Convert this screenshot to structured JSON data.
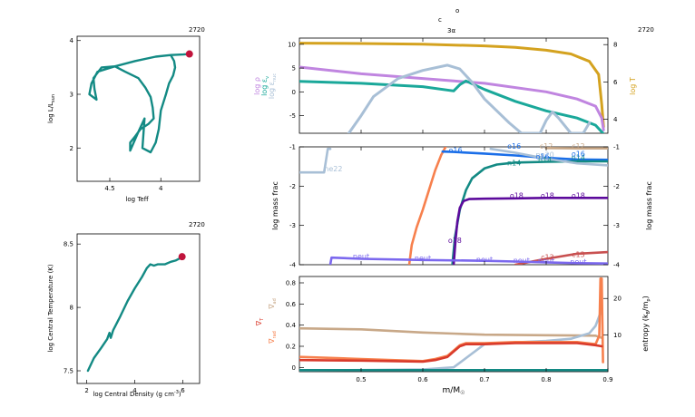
{
  "chart_data": [
    {
      "id": "hr",
      "type": "line",
      "xlabel": "log Teff",
      "ylabel": "log L/L",
      "ylabel_sub": "sun",
      "model_number": "2720",
      "x_ticks": [
        "4.5",
        "4"
      ],
      "y_ticks": [
        "2",
        "3",
        "4"
      ],
      "xlim": [
        4.82,
        3.62
      ],
      "ylim": [
        1.38,
        4.08
      ],
      "series": [
        {
          "color": "#138a84",
          "x": [
            3.72,
            3.78,
            3.9,
            4.05,
            4.25,
            4.45,
            4.62,
            4.68,
            4.7,
            4.63,
            4.65,
            4.66,
            4.58,
            4.45,
            4.35,
            4.22,
            4.15,
            4.1,
            4.08,
            4.07,
            4.12,
            4.2,
            4.25,
            4.3,
            4.3,
            4.22,
            4.16,
            4.18,
            4.1,
            4.05,
            4.02,
            4.0,
            3.95,
            3.92,
            3.88,
            3.86,
            3.87,
            3.9
          ],
          "y": [
            3.75,
            3.74,
            3.73,
            3.7,
            3.62,
            3.52,
            3.42,
            3.2,
            3.0,
            2.9,
            3.1,
            3.3,
            3.5,
            3.52,
            3.42,
            3.3,
            3.12,
            2.95,
            2.75,
            2.55,
            2.45,
            2.35,
            2.22,
            2.1,
            1.95,
            2.3,
            2.55,
            2.0,
            1.92,
            2.1,
            2.35,
            2.7,
            3.0,
            3.2,
            3.35,
            3.5,
            3.62,
            3.72
          ]
        }
      ],
      "marker": {
        "x": 3.72,
        "y": 3.75,
        "color": "#c0143c"
      }
    },
    {
      "id": "trho",
      "type": "line",
      "xlabel": "log Central Density (g cm",
      "xlabel_sup": "-3",
      "ylabel": "log Central Temperature (K)",
      "model_number": "2720",
      "x_ticks": [
        "2",
        "4",
        "6"
      ],
      "y_ticks": [
        "7.5",
        "8",
        "8.5"
      ],
      "xlim": [
        1.6,
        6.7
      ],
      "ylim": [
        7.4,
        8.58
      ],
      "series": [
        {
          "color": "#138a84",
          "x": [
            2.05,
            2.3,
            2.6,
            2.85,
            2.95,
            3.0,
            3.05,
            3.1,
            3.4,
            3.7,
            4.0,
            4.3,
            4.5,
            4.65,
            4.8,
            4.95,
            5.25,
            5.5,
            5.7,
            5.85,
            5.97
          ],
          "y": [
            7.5,
            7.6,
            7.68,
            7.75,
            7.8,
            7.76,
            7.79,
            7.82,
            7.93,
            8.05,
            8.15,
            8.24,
            8.31,
            8.34,
            8.33,
            8.34,
            8.34,
            8.36,
            8.37,
            8.385,
            8.4
          ]
        }
      ],
      "marker": {
        "x": 5.97,
        "y": 8.4,
        "color": "#c0143c"
      }
    },
    {
      "id": "profile-top",
      "type": "line",
      "header": [
        "c",
        "o",
        "3α"
      ],
      "model_number": "2720",
      "xlim": [
        0.4,
        0.9
      ],
      "ylim": [
        -8.7,
        11.3
      ],
      "y_ticks": [
        "-5",
        "0",
        "5",
        "10"
      ],
      "y2lim": [
        3.25,
        8.35
      ],
      "y2_ticks": [
        "4",
        "6",
        "8"
      ],
      "left_labels": [
        {
          "text": "log ρ",
          "color": "#c085e0"
        },
        {
          "text": "log ε",
          "sub": "ν",
          "color": "#1aa89a"
        },
        {
          "text": "log ε",
          "sub": "nuc",
          "color": "#a8bfd6"
        }
      ],
      "right_label": {
        "text": "log T",
        "color": "#d4a21f"
      },
      "series": [
        {
          "name": "log T",
          "axis": "right",
          "color": "#d4a21f",
          "x": [
            0.4,
            0.5,
            0.6,
            0.7,
            0.75,
            0.8,
            0.84,
            0.87,
            0.885,
            0.89,
            0.893
          ],
          "y": [
            8.08,
            8.06,
            8.02,
            7.93,
            7.85,
            7.7,
            7.5,
            7.1,
            6.4,
            4.8,
            3.6
          ]
        },
        {
          "name": "log ρ",
          "axis": "left",
          "color": "#c085e0",
          "x": [
            0.4,
            0.5,
            0.6,
            0.65,
            0.7,
            0.8,
            0.85,
            0.88,
            0.89,
            0.893
          ],
          "y": [
            5.2,
            3.8,
            2.8,
            2.3,
            1.8,
            0.0,
            -1.5,
            -3.0,
            -5.5,
            -8.0
          ]
        },
        {
          "name": "log ε ν",
          "axis": "left",
          "color": "#1aa89a",
          "x": [
            0.4,
            0.5,
            0.6,
            0.65,
            0.66,
            0.67,
            0.7,
            0.75,
            0.8,
            0.85,
            0.88,
            0.892
          ],
          "y": [
            2.2,
            1.8,
            1.1,
            0.2,
            1.5,
            2.3,
            0.5,
            -2.0,
            -4.0,
            -5.5,
            -7.0,
            -8.7
          ]
        },
        {
          "name": "log ε nuc",
          "axis": "left",
          "color": "#a8bfd6",
          "x": [
            0.48,
            0.5,
            0.52,
            0.56,
            0.6,
            0.64,
            0.66,
            0.68,
            0.7,
            0.72,
            0.74,
            0.76,
            0.79,
            0.8,
            0.81,
            0.82,
            0.84,
            0.86,
            0.87
          ],
          "y": [
            -8.7,
            -5.0,
            -1.0,
            2.8,
            4.5,
            5.6,
            4.8,
            2.0,
            -1.5,
            -4.0,
            -6.5,
            -8.7,
            -8.7,
            -6.0,
            -4.2,
            -5.5,
            -8.7,
            -8.7,
            -6.5
          ]
        }
      ]
    },
    {
      "id": "profile-mid",
      "type": "line",
      "xlim": [
        0.4,
        0.9
      ],
      "ylim": [
        -4.0,
        -1.0
      ],
      "y_ticks": [
        "-4",
        "-3",
        "-2",
        "-1"
      ],
      "y2_ticks": [
        "-4",
        "-3",
        "-2",
        "-1"
      ],
      "ylabel": "log mass frac",
      "y2label": "log mass frac",
      "series": [
        {
          "name": "ne22",
          "color": "#a8bfd6",
          "x": [
            0.4,
            0.44,
            0.446,
            0.45
          ],
          "y": [
            -1.65,
            -1.65,
            -1.05,
            -1.05
          ]
        },
        {
          "name": "o16-orange",
          "color": "#f7804d",
          "x": [
            0.578,
            0.582,
            0.59,
            0.6,
            0.61,
            0.62,
            0.63,
            0.637
          ],
          "y": [
            -4.0,
            -3.5,
            -3.05,
            -2.6,
            -2.1,
            -1.6,
            -1.2,
            -1.0
          ]
        },
        {
          "name": "c12-tan",
          "color": "#c8a888",
          "x": [
            0.8,
            0.85,
            0.9
          ],
          "y": [
            -1.03,
            -1.04,
            -1.04
          ]
        },
        {
          "name": "o16-blue",
          "color": "#1a6ee8",
          "x": [
            0.632,
            0.65,
            0.7,
            0.75,
            0.8,
            0.85,
            0.9
          ],
          "y": [
            -1.12,
            -1.13,
            -1.17,
            -1.22,
            -1.28,
            -1.32,
            -1.33
          ]
        },
        {
          "name": "n14",
          "color": "#138a84",
          "x": [
            0.648,
            0.652,
            0.66,
            0.67,
            0.68,
            0.7,
            0.72,
            0.75,
            0.8,
            0.85,
            0.9
          ],
          "y": [
            -4.0,
            -3.3,
            -2.6,
            -2.1,
            -1.8,
            -1.55,
            -1.45,
            -1.4,
            -1.38,
            -1.37,
            -1.37
          ]
        },
        {
          "name": "ne20",
          "color": "#a8bfd6",
          "x": [
            0.71,
            0.75,
            0.8,
            0.85,
            0.9
          ],
          "y": [
            -1.05,
            -1.15,
            -1.3,
            -1.42,
            -1.47
          ]
        },
        {
          "name": "o18",
          "color": "#5c0a9c",
          "x": [
            0.65,
            0.653,
            0.656,
            0.66,
            0.666,
            0.675,
            0.7,
            0.75,
            0.8,
            0.9
          ],
          "y": [
            -4.0,
            -3.4,
            -2.9,
            -2.55,
            -2.38,
            -2.33,
            -2.32,
            -2.31,
            -2.3,
            -2.3
          ]
        },
        {
          "name": "c13",
          "color": "#c85050",
          "x": [
            0.75,
            0.8,
            0.85,
            0.9
          ],
          "y": [
            -4.0,
            -3.85,
            -3.72,
            -3.68
          ]
        },
        {
          "name": "neut",
          "color": "#7b68ee",
          "x": [
            0.45,
            0.452,
            0.5,
            0.6,
            0.7,
            0.75,
            0.8,
            0.85,
            0.9
          ],
          "y": [
            -4.0,
            -3.82,
            -3.85,
            -3.88,
            -3.9,
            -3.92,
            -3.94,
            -3.96,
            -3.97
          ]
        }
      ],
      "annotations": [
        {
          "text": "ne22",
          "x": 0.455,
          "y": -1.55,
          "color": "#a8bfd6"
        },
        {
          "text": "o16",
          "x": 0.653,
          "y": -1.08,
          "color": "#1a6ee8"
        },
        {
          "text": "o16",
          "x": 0.748,
          "y": -0.98,
          "color": "#1a6ee8"
        },
        {
          "text": "n14",
          "x": 0.748,
          "y": -1.4,
          "color": "#138a84"
        },
        {
          "text": "c12",
          "x": 0.8,
          "y": -0.98,
          "color": "#c8a888"
        },
        {
          "text": "ne20",
          "x": 0.798,
          "y": -1.2,
          "color": "#a8bfd6"
        },
        {
          "text": "n14",
          "x": 0.798,
          "y": -1.33,
          "color": "#138a84"
        },
        {
          "text": "o16",
          "x": 0.794,
          "y": -1.24,
          "color": "#1a6ee8"
        },
        {
          "text": "c12",
          "x": 0.852,
          "y": -0.98,
          "color": "#c8a888"
        },
        {
          "text": "n14",
          "x": 0.852,
          "y": -1.26,
          "color": "#138a84"
        },
        {
          "text": "o16",
          "x": 0.852,
          "y": -1.17,
          "color": "#1a6ee8"
        },
        {
          "text": "o18",
          "x": 0.752,
          "y": -2.24,
          "color": "#5c0a9c"
        },
        {
          "text": "o18",
          "x": 0.802,
          "y": -2.24,
          "color": "#5c0a9c"
        },
        {
          "text": "o18",
          "x": 0.852,
          "y": -2.24,
          "color": "#5c0a9c"
        },
        {
          "text": "o18",
          "x": 0.652,
          "y": -3.38,
          "color": "#5c0a9c"
        },
        {
          "text": "c13",
          "x": 0.802,
          "y": -3.8,
          "color": "#c85050"
        },
        {
          "text": "c13",
          "x": 0.852,
          "y": -3.74,
          "color": "#c85050"
        },
        {
          "text": "neut",
          "x": 0.5,
          "y": -3.78,
          "color": "#7b68ee"
        },
        {
          "text": "neut",
          "x": 0.6,
          "y": -3.83,
          "color": "#7b68ee"
        },
        {
          "text": "neut",
          "x": 0.7,
          "y": -3.86,
          "color": "#7b68ee"
        },
        {
          "text": "neut",
          "x": 0.76,
          "y": -3.88,
          "color": "#7b68ee"
        },
        {
          "text": "neut",
          "x": 0.8,
          "y": -3.9,
          "color": "#7b68ee"
        },
        {
          "text": "neut",
          "x": 0.852,
          "y": -3.92,
          "color": "#7b68ee"
        }
      ]
    },
    {
      "id": "profile-bottom",
      "type": "line",
      "xlabel": "m/M",
      "xlabel_sub": "☉",
      "xlim": [
        0.4,
        0.9
      ],
      "x_ticks": [
        "0.5",
        "0.6",
        "0.7",
        "0.8",
        "0.9"
      ],
      "ylim": [
        -0.04,
        0.86
      ],
      "y_ticks": [
        "0",
        "0.2",
        "0.4",
        "0.6",
        "0.8"
      ],
      "y2lim": [
        0,
        26
      ],
      "y2_ticks": [
        "10",
        "20"
      ],
      "left_labels": [
        {
          "text": "∇",
          "sub": "ad",
          "color": "#c8a888"
        },
        {
          "text": "∇",
          "sub": "T",
          "color": "#d93a2b"
        },
        {
          "text": "∇",
          "sub": "rad",
          "color": "#f7804d"
        }
      ],
      "right_label": {
        "text": "entropy (k",
        "sub": "B",
        "after": "/m",
        "sub2": "p",
        "after2": ")",
        "color": "#000000"
      },
      "series": [
        {
          "name": "∇ad",
          "axis": "left",
          "color": "#c8a888",
          "x": [
            0.4,
            0.5,
            0.6,
            0.65,
            0.7,
            0.8,
            0.88,
            0.89
          ],
          "y": [
            0.37,
            0.36,
            0.33,
            0.32,
            0.31,
            0.305,
            0.3,
            0.28
          ]
        },
        {
          "name": "entropy",
          "axis": "right",
          "color": "#a8bfd6",
          "x": [
            0.4,
            0.5,
            0.6,
            0.65,
            0.7,
            0.75,
            0.8,
            0.84,
            0.87,
            0.88,
            0.89
          ],
          "y": [
            0.4,
            0.45,
            0.6,
            1.2,
            7.5,
            8.0,
            8.4,
            9.0,
            10.5,
            12.5,
            17.0
          ]
        },
        {
          "name": "∇rad",
          "axis": "left",
          "color": "#f7804d",
          "x": [
            0.4,
            0.45,
            0.5,
            0.55,
            0.6,
            0.62,
            0.64,
            0.65,
            0.66,
            0.67,
            0.7,
            0.75,
            0.8,
            0.85,
            0.88,
            0.886,
            0.888,
            0.89,
            0.892
          ],
          "y": [
            0.1,
            0.09,
            0.08,
            0.07,
            0.06,
            0.08,
            0.11,
            0.16,
            0.21,
            0.23,
            0.23,
            0.24,
            0.24,
            0.24,
            0.22,
            0.3,
            0.84,
            0.84,
            0.05
          ]
        },
        {
          "name": "∇T",
          "axis": "left",
          "color": "#d93a2b",
          "x": [
            0.4,
            0.5,
            0.6,
            0.62,
            0.64,
            0.65,
            0.66,
            0.67,
            0.7,
            0.75,
            0.8,
            0.85,
            0.88,
            0.89
          ],
          "y": [
            0.07,
            0.065,
            0.055,
            0.07,
            0.1,
            0.15,
            0.2,
            0.22,
            0.22,
            0.23,
            0.23,
            0.23,
            0.21,
            0.2
          ]
        },
        {
          "name": "zero-line",
          "axis": "left",
          "color": "#138a84",
          "x": [
            0.4,
            0.9
          ],
          "y": [
            -0.025,
            -0.025
          ]
        }
      ]
    }
  ]
}
